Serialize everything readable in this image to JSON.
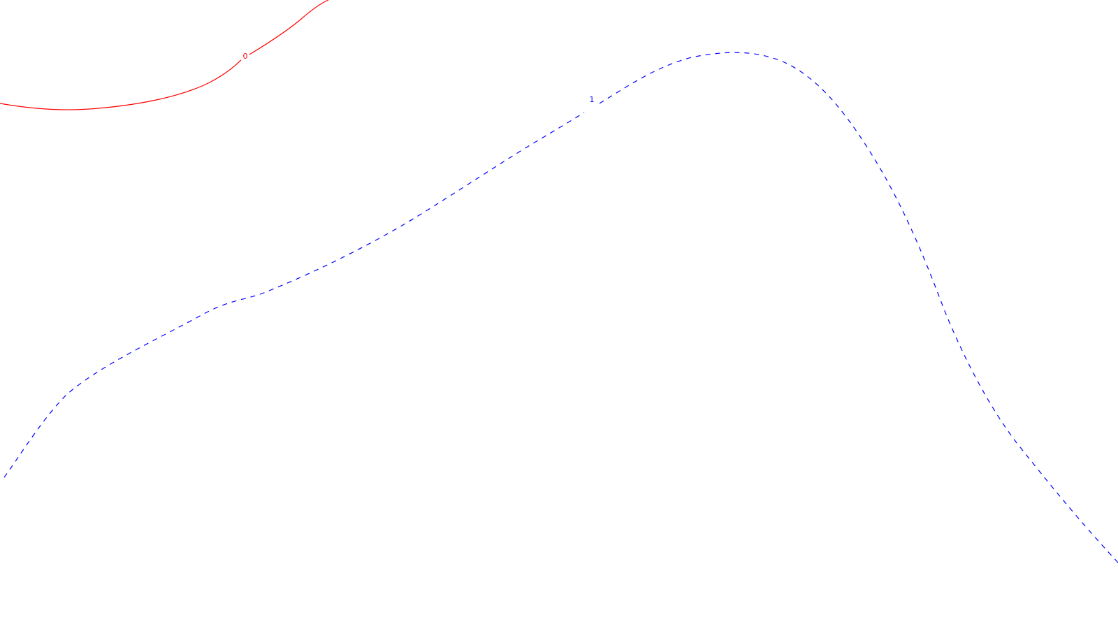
{
  "contours": [
    {
      "label": "0",
      "color": "#ff0000",
      "style": "solid"
    },
    {
      "label": "1",
      "color": "#0000ff",
      "style": "dashed"
    }
  ]
}
